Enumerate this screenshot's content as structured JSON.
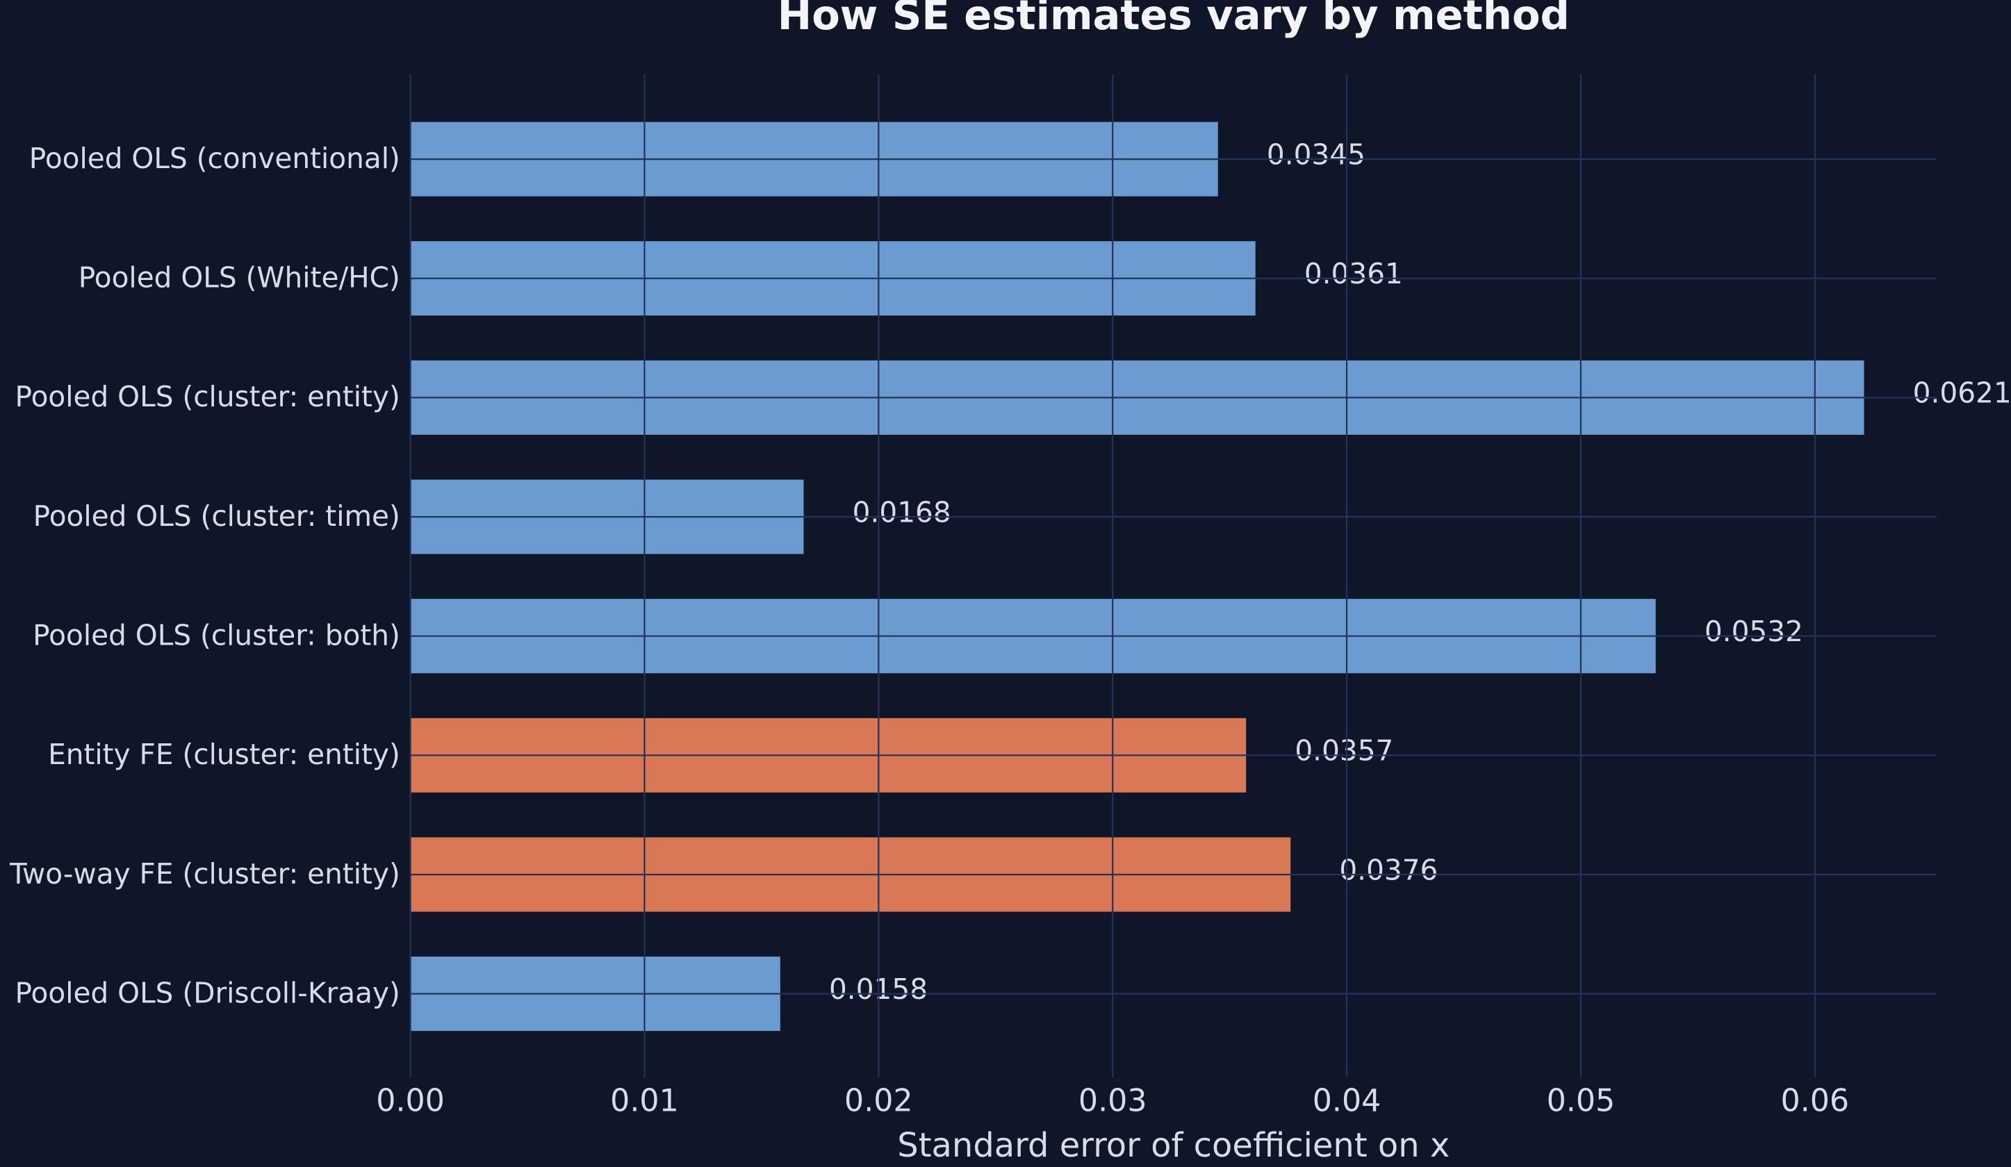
{
  "chart_data": {
    "type": "bar",
    "orientation": "horizontal",
    "title": "How SE estimates vary by method",
    "x_label": "Standard error of coefficient on x",
    "categories": [
      "Pooled OLS (conventional)",
      "Pooled OLS (White/HC)",
      "Pooled OLS (cluster: entity)",
      "Pooled OLS (cluster: time)",
      "Pooled OLS (cluster: both)",
      "Entity FE (cluster: entity)",
      "Two-way FE (cluster: entity)",
      "Pooled OLS (Driscoll-Kraay)"
    ],
    "values": [
      0.0345,
      0.0361,
      0.0621,
      0.0168,
      0.0532,
      0.0357,
      0.0376,
      0.0158
    ],
    "colors": [
      "#6b9bd1",
      "#6b9bd1",
      "#6b9bd1",
      "#6b9bd1",
      "#6b9bd1",
      "#d97757",
      "#d97757",
      "#6b9bd1"
    ],
    "xlim": [
      0,
      0.0652
    ],
    "xticks": [
      {
        "value": 0,
        "label": "0.00"
      },
      0.01,
      0.02,
      0.03,
      0.04,
      0.05,
      0.06
    ],
    "grid": true
  }
}
